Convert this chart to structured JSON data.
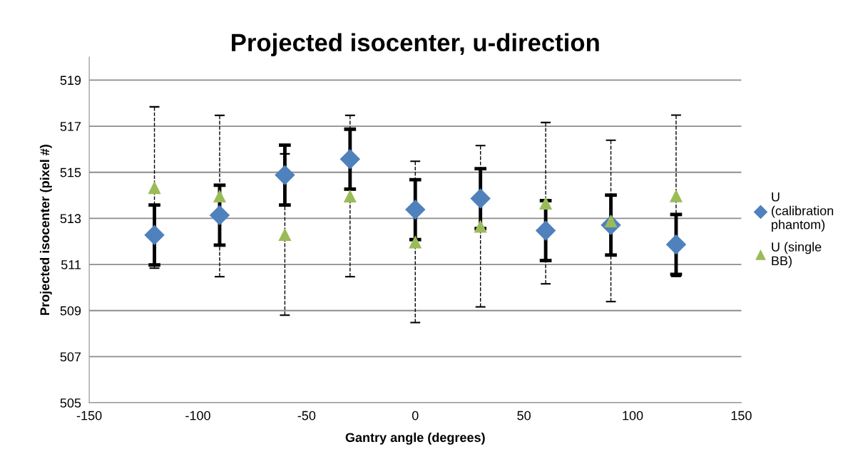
{
  "chart_data": {
    "type": "scatter",
    "title": "Projected isocenter, u-direction",
    "xlabel": "Gantry angle (degrees)",
    "ylabel": "Projected isocenter (pixel #)",
    "x": [
      -120,
      -90,
      -60,
      -30,
      0,
      30,
      60,
      90,
      120
    ],
    "series": [
      {
        "name": "U (calibration phantom)",
        "color": "#4f81bd",
        "marker": "diamond",
        "line_style": "solid",
        "values": [
          512.28,
          513.14,
          514.88,
          515.57,
          513.38,
          513.86,
          512.47,
          512.71,
          511.87
        ],
        "errors": [
          1.3,
          1.3,
          1.3,
          1.3,
          1.3,
          1.3,
          1.3,
          1.3,
          1.3
        ]
      },
      {
        "name": "U (single BB)",
        "color": "#9bbb59",
        "marker": "triangle",
        "line_style": "dashed",
        "values": [
          514.34,
          513.97,
          512.3,
          513.97,
          511.98,
          512.66,
          513.66,
          512.89,
          513.98
        ],
        "errors": [
          3.5,
          3.5,
          3.5,
          3.5,
          3.5,
          3.5,
          3.5,
          3.5,
          3.5
        ]
      }
    ],
    "xlim": [
      -150,
      150
    ],
    "xticks": [
      -150,
      -100,
      -50,
      0,
      50,
      100,
      150
    ],
    "ylim": [
      505,
      520
    ],
    "yticks": [
      505,
      507,
      509,
      511,
      513,
      515,
      517,
      519
    ],
    "grid": "y",
    "legend": "right"
  }
}
